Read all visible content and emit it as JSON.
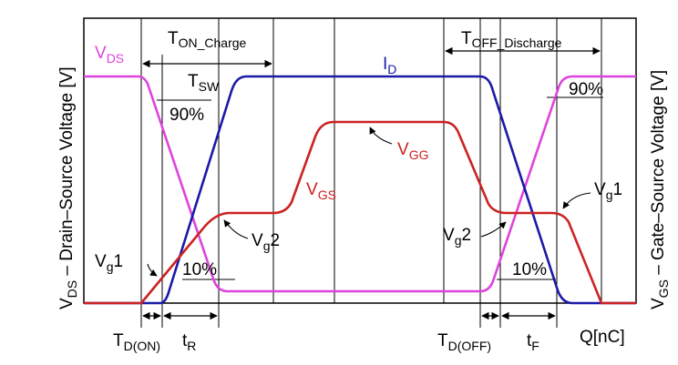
{
  "axes": {
    "left_label": "V",
    "left_label_sub": "DS",
    "left_label_rest": " – Drain–Source Voltage [V]",
    "right_label": "V",
    "right_label_sub": "GS",
    "right_label_rest": " – Gate–Source Voltage [V]",
    "x_unit": "Q[nC]"
  },
  "labels": {
    "t_on_charge": {
      "main": "T",
      "sub": "ON_Charge"
    },
    "t_off_discharge": {
      "main": "T",
      "sub": "OFF_Discharge"
    },
    "t_sw": {
      "main": "T",
      "sub": "SW"
    },
    "i_d": {
      "main": "I",
      "sub": "D"
    },
    "v_ds": {
      "main": "V",
      "sub": "DS"
    },
    "v_gg": {
      "main": "V",
      "sub": "GG"
    },
    "v_gs": {
      "main": "V",
      "sub": "GS"
    },
    "vg1_left": {
      "main": "V",
      "sub": "g",
      "tail": "1"
    },
    "vg2_left": {
      "main": "V",
      "sub": "g",
      "tail": "2"
    },
    "vg1_right": {
      "main": "V",
      "sub": "g",
      "tail": "1"
    },
    "vg2_right": {
      "main": "V",
      "sub": "g",
      "tail": "2"
    },
    "pct90_left": "90%",
    "pct10_left": "10%",
    "pct90_right": "90%",
    "pct10_right": "10%",
    "td_on": {
      "main": "T",
      "sub": "D(ON)"
    },
    "t_r": {
      "main": "t",
      "sub": "R"
    },
    "td_off": {
      "main": "T",
      "sub": "D(OFF)"
    },
    "t_f": {
      "main": "t",
      "sub": "F"
    }
  },
  "colors": {
    "vds": "#dd44dd",
    "id": "#1a1aa8",
    "vgs": "#cc2222",
    "axis": "#000000",
    "grid": "#000000"
  }
}
